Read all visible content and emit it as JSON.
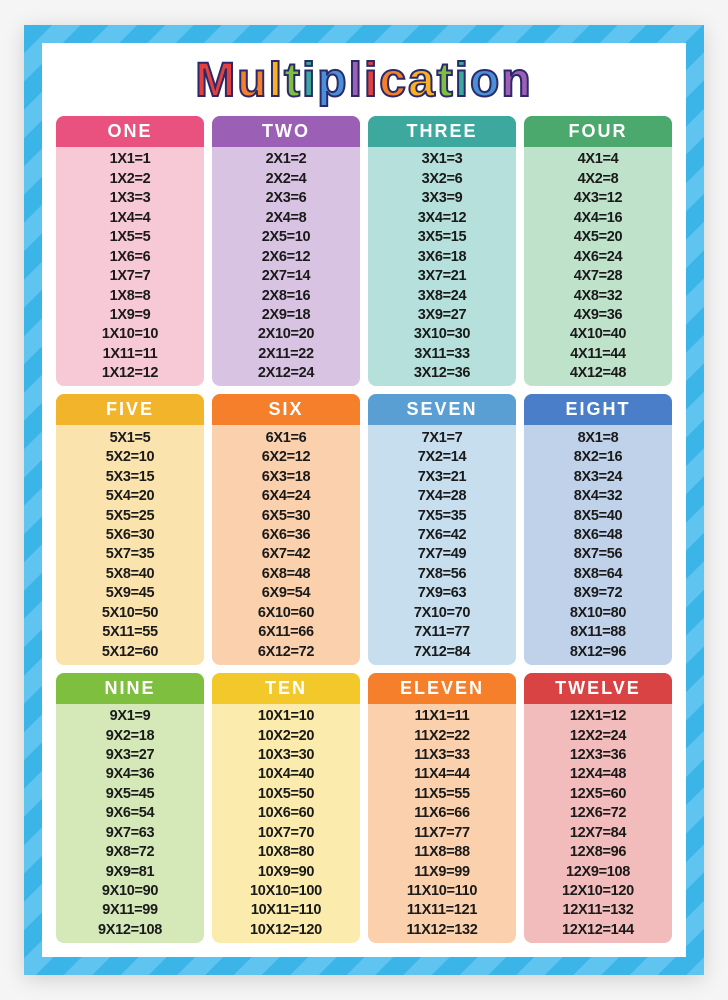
{
  "title_letters": [
    {
      "char": "M",
      "color": "#e2413f"
    },
    {
      "char": "u",
      "color": "#f57f2a"
    },
    {
      "char": "l",
      "color": "#f9b023"
    },
    {
      "char": "t",
      "color": "#7fbf3f"
    },
    {
      "char": "i",
      "color": "#3da89e"
    },
    {
      "char": "p",
      "color": "#4a90d9"
    },
    {
      "char": "l",
      "color": "#a05fb5"
    },
    {
      "char": "i",
      "color": "#e2413f"
    },
    {
      "char": "c",
      "color": "#f57f2a"
    },
    {
      "char": "a",
      "color": "#f9b023"
    },
    {
      "char": "t",
      "color": "#7fbf3f"
    },
    {
      "char": "i",
      "color": "#3da89e"
    },
    {
      "char": "o",
      "color": "#4a90d9"
    },
    {
      "char": "n",
      "color": "#a05fb5"
    }
  ],
  "poster": {
    "stripe_color_a": "#3bb4e8",
    "stripe_color_b": "#5fc5f0",
    "inner_bg": "#ffffff",
    "eq_text_color": "#1a1a1a",
    "header_text_color": "#ffffff",
    "title_fontsize": 48,
    "header_fontsize": 18,
    "eq_fontsize": 14.5,
    "grid_cols": 4,
    "grid_rows": 3
  },
  "blocks": [
    {
      "label": "ONE",
      "n": 1,
      "header_color": "#e9527f",
      "body_color": "#f7c8d6"
    },
    {
      "label": "TWO",
      "n": 2,
      "header_color": "#9b5fb5",
      "body_color": "#d8c3e3"
    },
    {
      "label": "THREE",
      "n": 3,
      "header_color": "#3da89e",
      "body_color": "#b5e0db"
    },
    {
      "label": "FOUR",
      "n": 4,
      "header_color": "#4ba96d",
      "body_color": "#bfe2cb"
    },
    {
      "label": "FIVE",
      "n": 5,
      "header_color": "#f2b42a",
      "body_color": "#fbe3ad"
    },
    {
      "label": "SIX",
      "n": 6,
      "header_color": "#f57f2a",
      "body_color": "#fbd1ad"
    },
    {
      "label": "SEVEN",
      "n": 7,
      "header_color": "#5a9fd4",
      "body_color": "#c6deee"
    },
    {
      "label": "EIGHT",
      "n": 8,
      "header_color": "#4a7ec8",
      "body_color": "#c0d2ea"
    },
    {
      "label": "NINE",
      "n": 9,
      "header_color": "#7fbf3f",
      "body_color": "#d4e8b8"
    },
    {
      "label": "TEN",
      "n": 10,
      "header_color": "#f2c82a",
      "body_color": "#fbecad"
    },
    {
      "label": "ELEVEN",
      "n": 11,
      "header_color": "#f57f2a",
      "body_color": "#fbd1ad"
    },
    {
      "label": "TWELVE",
      "n": 12,
      "header_color": "#d94343",
      "body_color": "#f3bcbc"
    }
  ],
  "multipliers": [
    1,
    2,
    3,
    4,
    5,
    6,
    7,
    8,
    9,
    10,
    11,
    12
  ]
}
